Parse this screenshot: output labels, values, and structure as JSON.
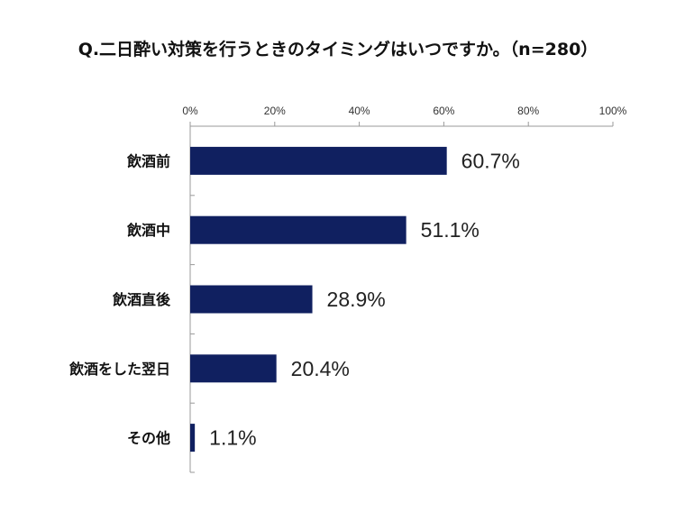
{
  "chart_data": {
    "type": "bar",
    "orientation": "horizontal",
    "title": "Q.二日酔い対策を行うときのタイミングはいつですか。（n=280）",
    "categories": [
      "飲酒前",
      "飲酒中",
      "飲酒直後",
      "飲酒をした翌日",
      "その他"
    ],
    "values": [
      60.7,
      51.1,
      28.9,
      20.4,
      1.1
    ],
    "value_labels": [
      "60.7%",
      "51.1%",
      "28.9%",
      "20.4%",
      "1.1%"
    ],
    "xlim": [
      0,
      100
    ],
    "x_ticks": [
      "0%",
      "20%",
      "40%",
      "60%",
      "80%",
      "100%"
    ],
    "x_tick_values": [
      0,
      20,
      40,
      60,
      80,
      100
    ],
    "xaxis_position": "top",
    "grid": false,
    "legend": "none",
    "bar_color": "#102060"
  }
}
